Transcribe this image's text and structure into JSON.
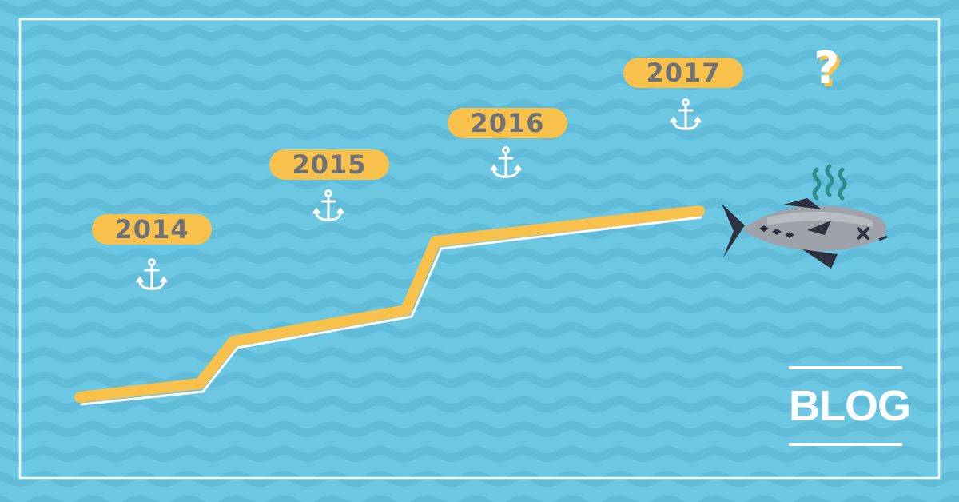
{
  "timeline": {
    "years": [
      "2014",
      "2015",
      "2016",
      "2017"
    ]
  },
  "question": "?",
  "badge": {
    "label": "BLOG"
  },
  "icons": {
    "anchor": "anchor-icon",
    "fish": "dead-tuna-fish-icon",
    "smell": "stink-lines-icon",
    "question": "question-mark-icon"
  },
  "colors": {
    "background": "#6cc8e2",
    "wave": "#60bcd8",
    "frame": "#ffffff",
    "accent": "#f8c14c",
    "year_text": "#6f7178",
    "fish_body": "#9ea3ab",
    "fish_dark": "#2e3140",
    "stink": "#2d8f8a"
  }
}
